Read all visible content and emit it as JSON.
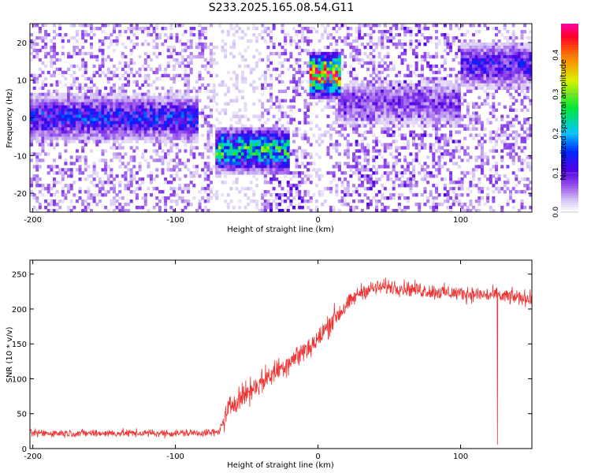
{
  "figure_title": "S233.2025.165.08.54.G11",
  "chart_data": [
    {
      "type": "heatmap",
      "xlabel": "Height of straight line (km)",
      "ylabel": "Frequency (Hz)",
      "xlim": [
        -202,
        150
      ],
      "ylim": [
        -25,
        25
      ],
      "x_ticks": [
        -200,
        -100,
        0,
        100
      ],
      "y_ticks": [
        -20,
        -10,
        0,
        10,
        20
      ],
      "colorbar": {
        "label": "Normalized spectral amplitude",
        "range": [
          0.0,
          0.48
        ],
        "ticks": [
          0.0,
          0.1,
          0.2,
          0.3,
          0.4
        ],
        "colormap": "rainbow-on-white"
      },
      "features": [
        {
          "x_range": [
            -202,
            -85
          ],
          "y_center": 0,
          "intensity": 0.14
        },
        {
          "x_range": [
            -72,
            -20
          ],
          "y_center": -8.5,
          "intensity": 0.25
        },
        {
          "x_range": [
            -5,
            15
          ],
          "y_center": 11.5,
          "intensity": 0.42
        },
        {
          "x_range": [
            15,
            100
          ],
          "y_center": 4,
          "intensity": 0.08
        },
        {
          "x_range": [
            100,
            150
          ],
          "y_center": 14,
          "intensity": 0.12
        }
      ]
    },
    {
      "type": "line",
      "xlabel": "Height of straight line (km)",
      "ylabel": "SNR (10 * v/v)",
      "xlim": [
        -202,
        150
      ],
      "ylim": [
        0,
        270
      ],
      "x_ticks": [
        -200,
        -100,
        0,
        100
      ],
      "y_ticks": [
        0,
        50,
        100,
        150,
        200,
        250
      ],
      "color": "#ee3333",
      "series": [
        {
          "x": [
            -202,
            -150,
            -100,
            -70,
            -66,
            -60,
            -50,
            -40,
            -30,
            -20,
            -10,
            0,
            10,
            20,
            30,
            40,
            50,
            60,
            80,
            100,
            120,
            150
          ],
          "y": [
            22,
            22,
            22,
            23,
            40,
            65,
            80,
            95,
            110,
            125,
            140,
            155,
            185,
            205,
            225,
            230,
            232,
            230,
            225,
            222,
            220,
            215
          ]
        }
      ]
    }
  ]
}
